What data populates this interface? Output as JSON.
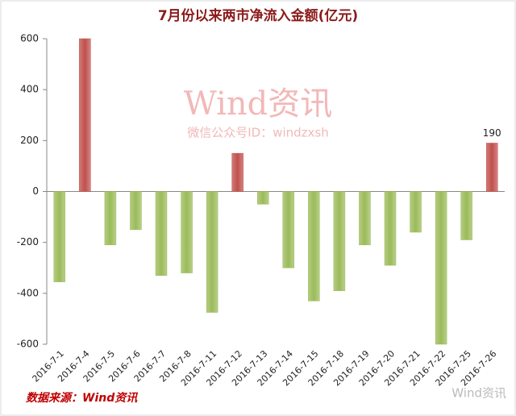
{
  "chart_data": {
    "type": "bar",
    "title": "7月份以来两市净流入金额(亿元)",
    "watermark": "Wind资讯",
    "watermark_sub": "微信公众号ID：windzxsh",
    "source": "数据来源：Wind资讯",
    "logo": "Wind资讯",
    "categories": [
      "2016-7-1",
      "2016-7-4",
      "2016-7-5",
      "2016-7-6",
      "2016-7-7",
      "2016-7-8",
      "2016-7-11",
      "2016-7-12",
      "2016-7-13",
      "2016-7-14",
      "2016-7-15",
      "2016-7-18",
      "2016-7-19",
      "2016-7-20",
      "2016-7-21",
      "2016-7-22",
      "2016-7-25",
      "2016-7-26"
    ],
    "values": [
      -355,
      600,
      -210,
      -150,
      -330,
      -320,
      -475,
      150,
      -50,
      -300,
      -430,
      -390,
      -210,
      -290,
      -160,
      -600,
      -190,
      190
    ],
    "value_labels": [
      null,
      null,
      null,
      null,
      null,
      null,
      null,
      null,
      null,
      null,
      null,
      null,
      null,
      null,
      null,
      null,
      null,
      "190"
    ],
    "positive_color": "#c0504d",
    "negative_color": "#9bbb59",
    "ylim": [
      -600,
      600
    ],
    "yticks": [
      -600,
      -400,
      -200,
      0,
      200,
      400,
      600
    ]
  }
}
